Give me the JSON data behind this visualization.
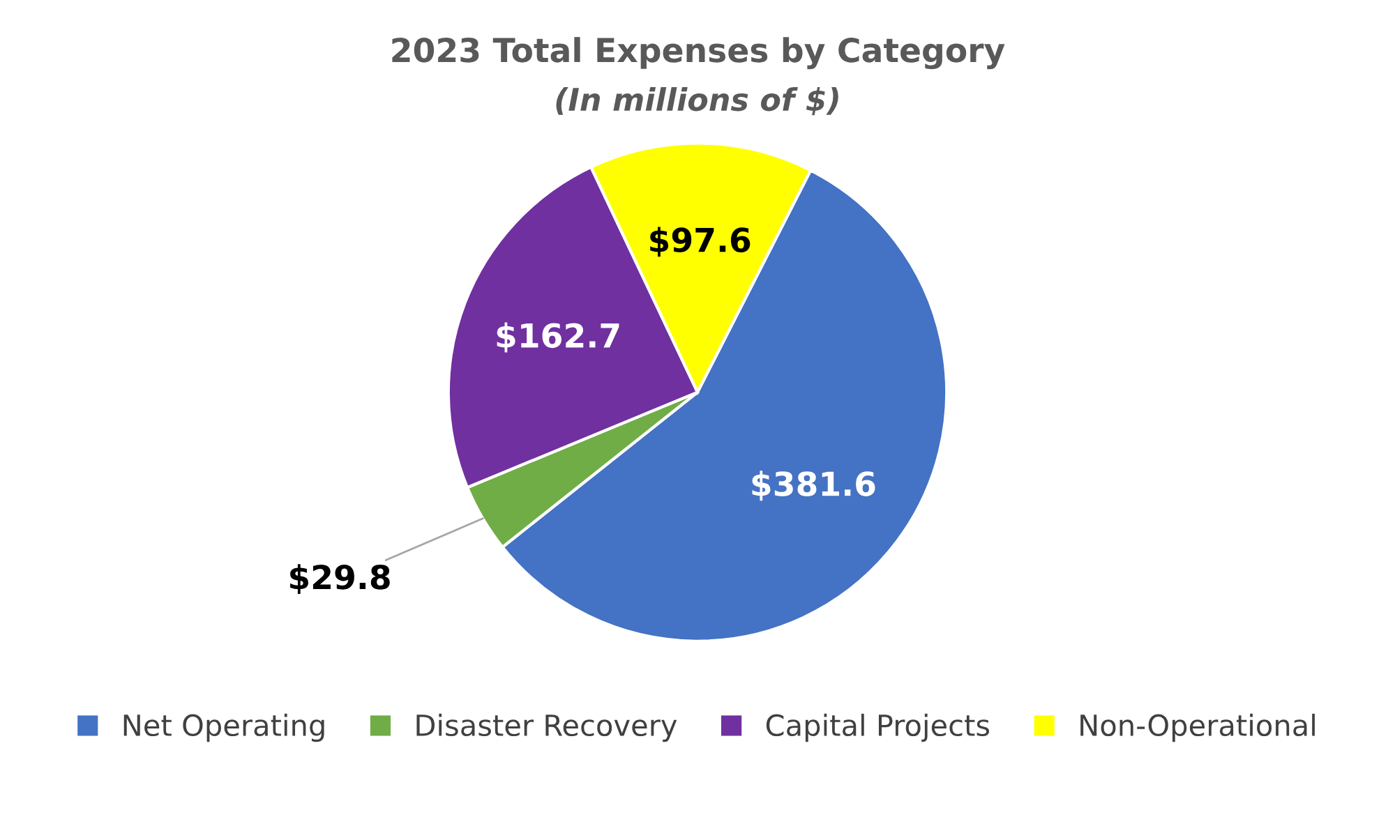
{
  "chart_data": {
    "type": "pie",
    "title": "2023 Total Expenses by Category",
    "subtitle": "(In millions of $)",
    "categories": [
      "Net Operating",
      "Disaster Recovery",
      "Capital Projects",
      "Non-Operational"
    ],
    "values": [
      381.6,
      29.8,
      162.7,
      97.6
    ],
    "colors": [
      "#4472c4",
      "#70ad47",
      "#7030a0",
      "#ffff00"
    ],
    "value_labels": [
      "$381.6",
      "$29.8",
      "$162.7",
      "$97.6"
    ],
    "legend": "bottom"
  }
}
